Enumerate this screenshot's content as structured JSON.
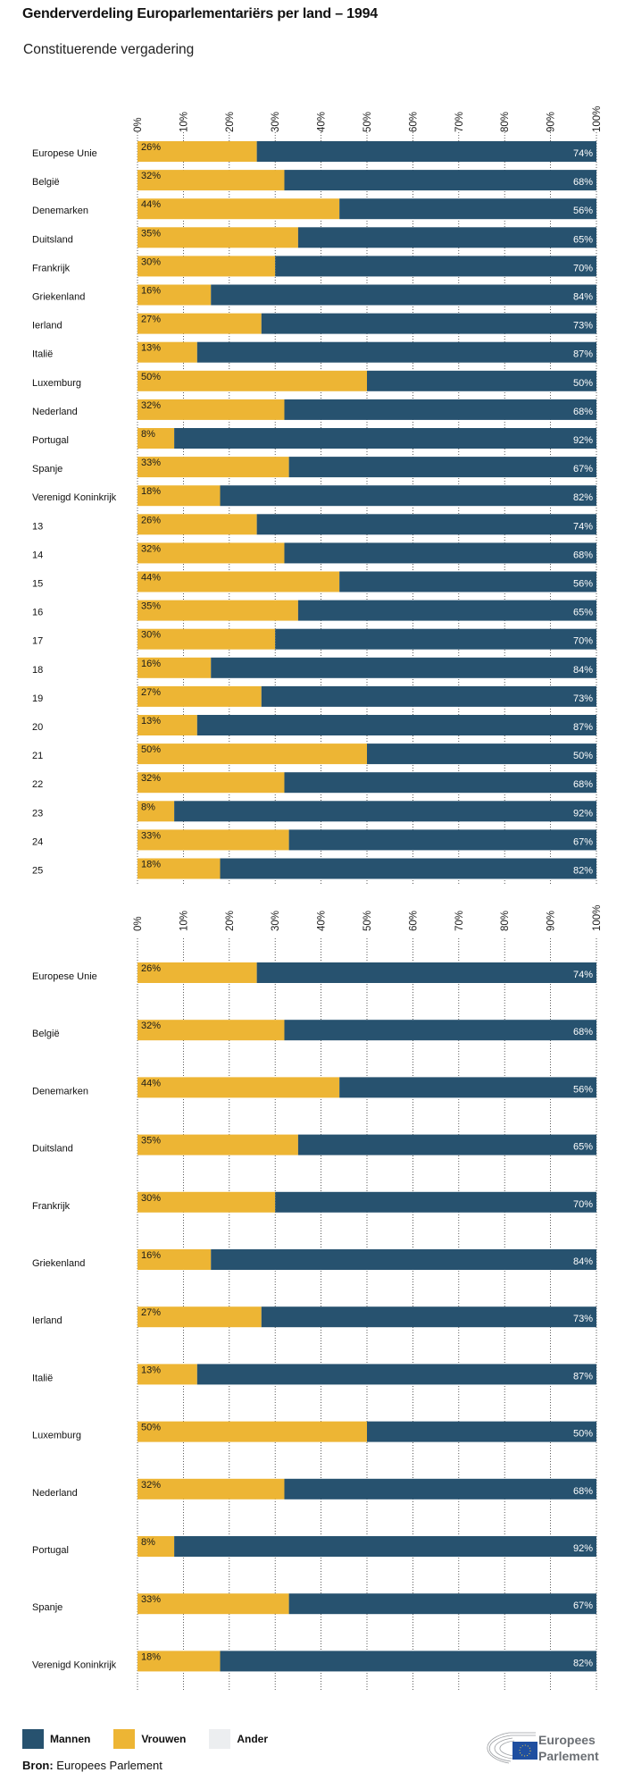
{
  "title": "Genderverdeling Europarlementariërs per land – 1994",
  "subtitle": "Constituerende vergadering",
  "colors": {
    "Mannen": "#27526f",
    "Vrouwen": "#edb534",
    "Ander": "#eceef0"
  },
  "chart_data": [
    {
      "type": "bar",
      "stacked": true,
      "orientation": "horizontal",
      "xlim": [
        0,
        100
      ],
      "x_ticks": [
        "0%",
        "10%",
        "20%",
        "30%",
        "40%",
        "50%",
        "60%",
        "70%",
        "80%",
        "90%",
        "100%"
      ],
      "grid": true,
      "categories": [
        "Europese Unie",
        "België",
        "Denemarken",
        "Duitsland",
        "Frankrijk",
        "Griekenland",
        "Ierland",
        "Italië",
        "Luxemburg",
        "Nederland",
        "Portugal",
        "Spanje",
        "Verenigd Koninkrijk",
        "13",
        "14",
        "15",
        "16",
        "17",
        "18",
        "19",
        "20",
        "21",
        "22",
        "23",
        "24",
        "25"
      ],
      "series": [
        {
          "name": "Vrouwen",
          "values": [
            26,
            32,
            44,
            35,
            30,
            16,
            27,
            13,
            50,
            32,
            8,
            33,
            18,
            26,
            32,
            44,
            35,
            30,
            16,
            27,
            13,
            50,
            32,
            8,
            33,
            18
          ]
        },
        {
          "name": "Mannen",
          "values": [
            74,
            68,
            56,
            65,
            70,
            84,
            73,
            87,
            50,
            68,
            92,
            67,
            82,
            74,
            68,
            56,
            65,
            70,
            84,
            73,
            87,
            50,
            68,
            92,
            67,
            82
          ]
        }
      ]
    },
    {
      "type": "bar",
      "stacked": true,
      "orientation": "horizontal",
      "xlim": [
        0,
        100
      ],
      "x_ticks": [
        "0%",
        "10%",
        "20%",
        "30%",
        "40%",
        "50%",
        "60%",
        "70%",
        "80%",
        "90%",
        "100%"
      ],
      "grid": true,
      "categories": [
        "Europese Unie",
        "België",
        "Denemarken",
        "Duitsland",
        "Frankrijk",
        "Griekenland",
        "Ierland",
        "Italië",
        "Luxemburg",
        "Nederland",
        "Portugal",
        "Spanje",
        "Verenigd Koninkrijk"
      ],
      "series": [
        {
          "name": "Vrouwen",
          "values": [
            26,
            32,
            44,
            35,
            30,
            16,
            27,
            13,
            50,
            32,
            8,
            33,
            18
          ]
        },
        {
          "name": "Mannen",
          "values": [
            74,
            68,
            56,
            65,
            70,
            84,
            73,
            87,
            50,
            68,
            92,
            67,
            82
          ]
        }
      ]
    }
  ],
  "legend": [
    {
      "name": "Mannen",
      "color": "#27526f"
    },
    {
      "name": "Vrouwen",
      "color": "#edb534"
    },
    {
      "name": "Ander",
      "color": "#eceef0"
    }
  ],
  "source": {
    "label": "Bron:",
    "text": "Europees Parlement"
  },
  "logo": {
    "line1": "Europees",
    "line2": "Parlement"
  }
}
